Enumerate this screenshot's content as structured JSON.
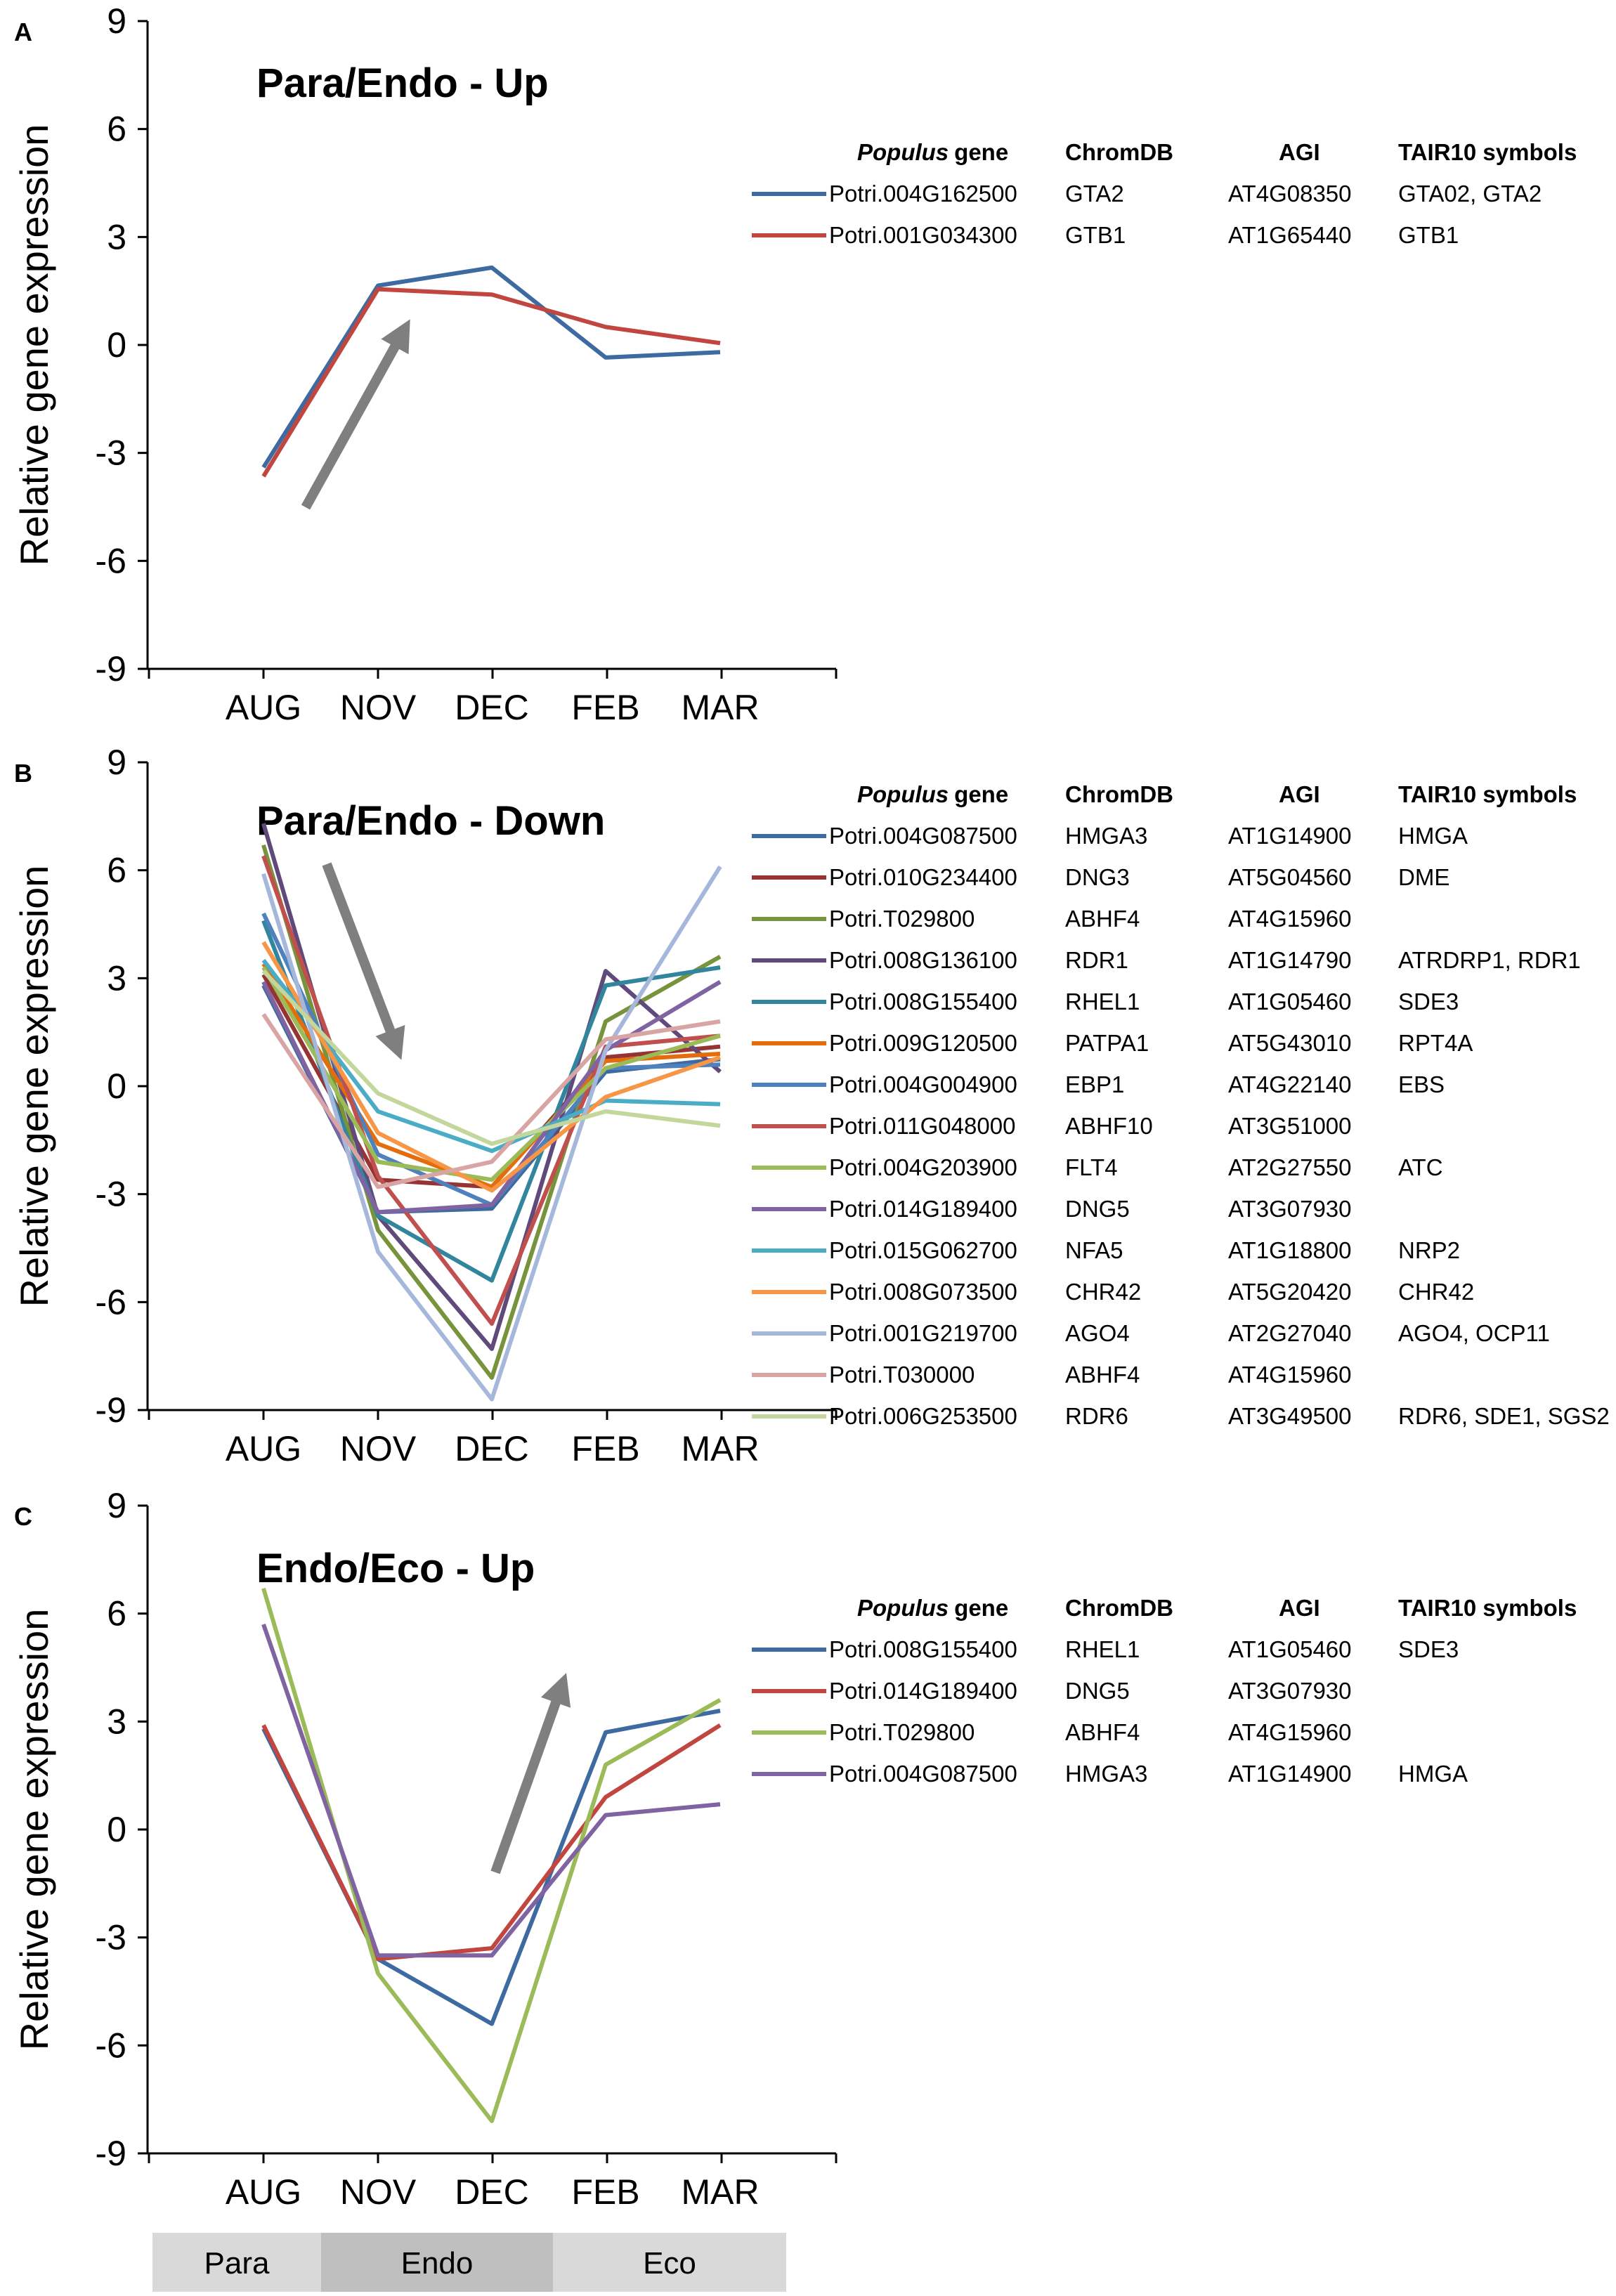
{
  "ylabel": "Relative gene expression",
  "months": [
    "AUG",
    "NOV",
    "DEC",
    "FEB",
    "MAR"
  ],
  "yticks": [
    "9",
    "6",
    "3",
    "0",
    "-3",
    "-6",
    "-9"
  ],
  "table_headers": {
    "gene_italic": "Populus",
    "gene_rest": "gene",
    "chromdb": "ChromDB",
    "agi": "AGI",
    "tair": "TAIR10  symbols"
  },
  "stages": [
    "Para",
    "Endo",
    "Eco"
  ],
  "chart_data": [
    {
      "type": "line",
      "letter": "A",
      "title": "Para/Endo - Up",
      "categories": [
        "AUG",
        "NOV",
        "DEC",
        "FEB",
        "MAR"
      ],
      "ylim": [
        -9,
        9
      ],
      "trend_arrow": "up",
      "series": [
        {
          "name": "Potri.004G162500",
          "chromdb": "GTA2",
          "agi": "AT4G08350",
          "tair": "GTA02, GTA2",
          "color": "#3d6aa0",
          "values": [
            -3.4,
            1.65,
            2.15,
            -0.35,
            -0.2
          ]
        },
        {
          "name": "Potri.001G034300",
          "chromdb": "GTB1",
          "agi": "AT1G65440",
          "tair": "GTB1",
          "color": "#c0463f",
          "values": [
            -3.65,
            1.55,
            1.4,
            0.5,
            0.05
          ]
        }
      ]
    },
    {
      "type": "line",
      "letter": "B",
      "title": "Para/Endo - Down",
      "categories": [
        "AUG",
        "NOV",
        "DEC",
        "FEB",
        "MAR"
      ],
      "ylim": [
        -9,
        9
      ],
      "trend_arrow": "down",
      "series": [
        {
          "name": "Potri.004G087500",
          "chromdb": "HMGA3",
          "agi": "AT1G14900",
          "tair": "HMGA",
          "color": "#3d6aa0",
          "values": [
            2.8,
            -3.5,
            -3.4,
            0.4,
            0.75
          ]
        },
        {
          "name": "Potri.010G234400",
          "chromdb": "DNG3",
          "agi": "AT5G04560",
          "tair": "DME",
          "color": "#963333",
          "values": [
            3.1,
            -2.6,
            -2.8,
            0.8,
            1.1
          ]
        },
        {
          "name": "Potri.T029800",
          "chromdb": "ABHF4",
          "agi": "AT4G15960",
          "tair": "",
          "color": "#77933c",
          "values": [
            6.7,
            -4.0,
            -8.1,
            1.8,
            3.6
          ]
        },
        {
          "name": "Potri.008G136100",
          "chromdb": "RDR1",
          "agi": "AT1G14790",
          "tair": "ATRDRP1, RDR1",
          "color": "#604a7b",
          "values": [
            7.3,
            -3.6,
            -7.3,
            3.2,
            0.4
          ]
        },
        {
          "name": "Potri.008G155400",
          "chromdb": "RHEL1",
          "agi": "AT1G05460",
          "tair": "SDE3",
          "color": "#31859c",
          "values": [
            4.6,
            -3.6,
            -5.4,
            2.8,
            3.3
          ]
        },
        {
          "name": "Potri.009G120500",
          "chromdb": "PATPA1",
          "agi": "AT5G43010",
          "tair": "RPT4A",
          "color": "#e46c0a",
          "values": [
            3.4,
            -1.6,
            -2.8,
            0.7,
            0.9
          ]
        },
        {
          "name": "Potri.004G004900",
          "chromdb": "EBP1",
          "agi": "AT4G22140",
          "tair": "EBS",
          "color": "#4f81bd",
          "values": [
            4.8,
            -1.9,
            -3.3,
            0.5,
            0.6
          ]
        },
        {
          "name": "Potri.011G048000",
          "chromdb": "ABHF10",
          "agi": "AT3G51000",
          "tair": "",
          "color": "#c0504d",
          "values": [
            6.4,
            -2.5,
            -6.6,
            1.1,
            1.4
          ]
        },
        {
          "name": "Potri.004G203900",
          "chromdb": "FLT4",
          "agi": "AT2G27550",
          "tair": "ATC",
          "color": "#9bbb59",
          "values": [
            3.3,
            -2.1,
            -2.6,
            0.5,
            1.4
          ]
        },
        {
          "name": "Potri.014G189400",
          "chromdb": "DNG5",
          "agi": "AT3G07930",
          "tair": "",
          "color": "#8064a2",
          "values": [
            2.9,
            -3.5,
            -3.3,
            1.0,
            2.9
          ]
        },
        {
          "name": "Potri.015G062700",
          "chromdb": "NFA5",
          "agi": "AT1G18800",
          "tair": "NRP2",
          "color": "#4bacc6",
          "values": [
            3.5,
            -0.7,
            -1.8,
            -0.4,
            -0.5
          ]
        },
        {
          "name": "Potri.008G073500",
          "chromdb": "CHR42",
          "agi": "AT5G20420",
          "tair": "CHR42",
          "color": "#f79646",
          "values": [
            4.0,
            -1.3,
            -2.9,
            -0.3,
            0.8
          ]
        },
        {
          "name": "Potri.001G219700",
          "chromdb": "AGO4",
          "agi": "AT2G27040",
          "tair": "AGO4, OCP11",
          "color": "#a5b8dc",
          "values": [
            5.9,
            -4.6,
            -8.7,
            1.0,
            6.1
          ]
        },
        {
          "name": "Potri.T030000",
          "chromdb": "ABHF4",
          "agi": "AT4G15960",
          "tair": "",
          "color": "#d9a5a4",
          "values": [
            2.0,
            -2.8,
            -2.1,
            1.3,
            1.8
          ]
        },
        {
          "name": "Potri.006G253500",
          "chromdb": "RDR6",
          "agi": "AT3G49500",
          "tair": "RDR6, SDE1, SGS2",
          "color": "#c3d69b",
          "values": [
            3.2,
            -0.2,
            -1.6,
            -0.7,
            -1.1
          ]
        }
      ]
    },
    {
      "type": "line",
      "letter": "C",
      "title": "Endo/Eco - Up",
      "categories": [
        "AUG",
        "NOV",
        "DEC",
        "FEB",
        "MAR"
      ],
      "ylim": [
        -9,
        9
      ],
      "trend_arrow": "up",
      "series": [
        {
          "name": "Potri.008G155400",
          "chromdb": "RHEL1",
          "agi": "AT1G05460",
          "tair": "SDE3",
          "color": "#3d6aa0",
          "values": [
            2.8,
            -3.6,
            -5.4,
            2.7,
            3.3
          ]
        },
        {
          "name": "Potri.014G189400",
          "chromdb": "DNG5",
          "agi": "AT3G07930",
          "tair": "",
          "color": "#c0463f",
          "values": [
            2.9,
            -3.6,
            -3.3,
            0.9,
            2.9
          ]
        },
        {
          "name": "Potri.T029800",
          "chromdb": "ABHF4",
          "agi": "AT4G15960",
          "tair": "",
          "color": "#9bbb59",
          "values": [
            6.7,
            -4.0,
            -8.1,
            1.8,
            3.6
          ]
        },
        {
          "name": "Potri.004G087500",
          "chromdb": "HMGA3",
          "agi": "AT1G14900",
          "tair": "HMGA",
          "color": "#8064a2",
          "values": [
            5.7,
            -3.5,
            -3.5,
            0.4,
            0.7
          ]
        }
      ]
    }
  ]
}
